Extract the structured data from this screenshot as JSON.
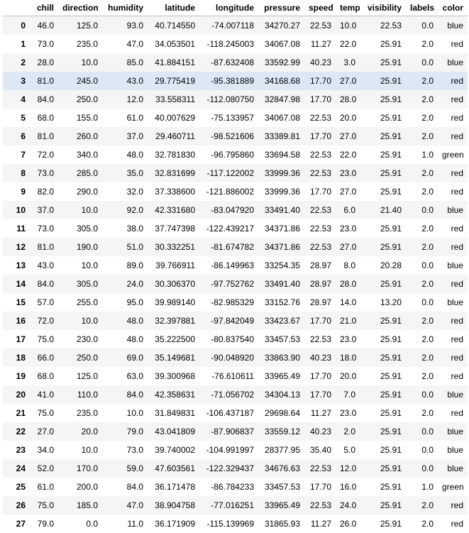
{
  "columns": [
    "",
    "chill",
    "direction",
    "humidity",
    "latitude",
    "longitude",
    "pressure",
    "speed",
    "temp",
    "visibility",
    "labels",
    "color"
  ],
  "highlighted_row": 3,
  "rows": [
    [
      "0",
      "46.0",
      "125.0",
      "93.0",
      "40.714550",
      "-74.007118",
      "34270.27",
      "22.53",
      "10.0",
      "22.53",
      "0.0",
      "blue"
    ],
    [
      "1",
      "73.0",
      "235.0",
      "47.0",
      "34.053501",
      "-118.245003",
      "34067.08",
      "11.27",
      "22.0",
      "25.91",
      "2.0",
      "red"
    ],
    [
      "2",
      "28.0",
      "10.0",
      "85.0",
      "41.884151",
      "-87.632408",
      "33592.99",
      "40.23",
      "3.0",
      "25.91",
      "0.0",
      "blue"
    ],
    [
      "3",
      "81.0",
      "245.0",
      "43.0",
      "29.775419",
      "-95.381889",
      "34168.68",
      "17.70",
      "27.0",
      "25.91",
      "2.0",
      "red"
    ],
    [
      "4",
      "84.0",
      "250.0",
      "12.0",
      "33.558311",
      "-112.080750",
      "32847.98",
      "17.70",
      "28.0",
      "25.91",
      "2.0",
      "red"
    ],
    [
      "5",
      "68.0",
      "155.0",
      "61.0",
      "40.007629",
      "-75.133957",
      "34067.08",
      "22.53",
      "20.0",
      "25.91",
      "2.0",
      "red"
    ],
    [
      "6",
      "81.0",
      "260.0",
      "37.0",
      "29.460711",
      "-98.521606",
      "33389.81",
      "17.70",
      "27.0",
      "25.91",
      "2.0",
      "red"
    ],
    [
      "7",
      "72.0",
      "340.0",
      "48.0",
      "32.781830",
      "-96.795860",
      "33694.58",
      "22.53",
      "22.0",
      "25.91",
      "1.0",
      "green"
    ],
    [
      "8",
      "73.0",
      "285.0",
      "35.0",
      "32.831699",
      "-117.122002",
      "33999.36",
      "22.53",
      "23.0",
      "25.91",
      "2.0",
      "red"
    ],
    [
      "9",
      "82.0",
      "290.0",
      "32.0",
      "37.338600",
      "-121.886002",
      "33999.36",
      "17.70",
      "27.0",
      "25.91",
      "2.0",
      "red"
    ],
    [
      "10",
      "37.0",
      "10.0",
      "92.0",
      "42.331680",
      "-83.047920",
      "33491.40",
      "22.53",
      "6.0",
      "21.40",
      "0.0",
      "blue"
    ],
    [
      "11",
      "73.0",
      "305.0",
      "38.0",
      "37.747398",
      "-122.439217",
      "34371.86",
      "22.53",
      "23.0",
      "25.91",
      "2.0",
      "red"
    ],
    [
      "12",
      "81.0",
      "190.0",
      "51.0",
      "30.332251",
      "-81.674782",
      "34371.86",
      "22.53",
      "27.0",
      "25.91",
      "2.0",
      "red"
    ],
    [
      "13",
      "43.0",
      "10.0",
      "89.0",
      "39.766911",
      "-86.149963",
      "33254.35",
      "28.97",
      "8.0",
      "20.28",
      "0.0",
      "blue"
    ],
    [
      "14",
      "84.0",
      "305.0",
      "24.0",
      "30.306370",
      "-97.752762",
      "33491.40",
      "28.97",
      "28.0",
      "25.91",
      "2.0",
      "red"
    ],
    [
      "15",
      "57.0",
      "255.0",
      "95.0",
      "39.989140",
      "-82.985329",
      "33152.76",
      "28.97",
      "14.0",
      "13.20",
      "0.0",
      "blue"
    ],
    [
      "16",
      "72.0",
      "10.0",
      "48.0",
      "32.397881",
      "-97.842049",
      "33423.67",
      "17.70",
      "21.0",
      "25.91",
      "2.0",
      "red"
    ],
    [
      "17",
      "75.0",
      "230.0",
      "48.0",
      "35.222500",
      "-80.837540",
      "33457.53",
      "22.53",
      "23.0",
      "25.91",
      "2.0",
      "red"
    ],
    [
      "18",
      "66.0",
      "250.0",
      "69.0",
      "35.149681",
      "-90.048920",
      "33863.90",
      "40.23",
      "18.0",
      "25.91",
      "2.0",
      "red"
    ],
    [
      "19",
      "68.0",
      "125.0",
      "63.0",
      "39.300968",
      "-76.610611",
      "33965.49",
      "17.70",
      "20.0",
      "25.91",
      "2.0",
      "red"
    ],
    [
      "20",
      "41.0",
      "110.0",
      "84.0",
      "42.358631",
      "-71.056702",
      "34304.13",
      "17.70",
      "7.0",
      "25.91",
      "0.0",
      "blue"
    ],
    [
      "21",
      "75.0",
      "235.0",
      "10.0",
      "31.849831",
      "-106.437187",
      "29698.64",
      "11.27",
      "23.0",
      "25.91",
      "2.0",
      "red"
    ],
    [
      "22",
      "27.0",
      "20.0",
      "79.0",
      "43.041809",
      "-87.906837",
      "33559.12",
      "40.23",
      "2.0",
      "25.91",
      "0.0",
      "blue"
    ],
    [
      "23",
      "34.0",
      "10.0",
      "73.0",
      "39.740002",
      "-104.991997",
      "28377.95",
      "35.40",
      "5.0",
      "25.91",
      "0.0",
      "blue"
    ],
    [
      "24",
      "52.0",
      "170.0",
      "59.0",
      "47.603561",
      "-122.329437",
      "34676.63",
      "22.53",
      "12.0",
      "25.91",
      "0.0",
      "blue"
    ],
    [
      "25",
      "61.0",
      "200.0",
      "84.0",
      "36.171478",
      "-86.784233",
      "33457.53",
      "17.70",
      "16.0",
      "25.91",
      "1.0",
      "green"
    ],
    [
      "26",
      "75.0",
      "185.0",
      "47.0",
      "38.904758",
      "-77.016251",
      "33965.49",
      "22.53",
      "24.0",
      "25.91",
      "2.0",
      "red"
    ],
    [
      "27",
      "79.0",
      "0.0",
      "11.0",
      "36.171909",
      "-115.139969",
      "31865.93",
      "11.27",
      "26.0",
      "25.91",
      "2.0",
      "red"
    ]
  ]
}
